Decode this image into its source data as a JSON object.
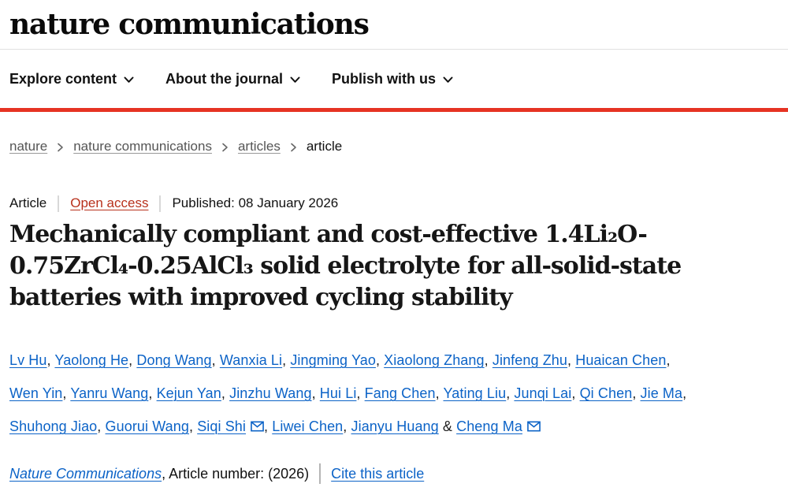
{
  "colors": {
    "brand_red_bar": "#e63323",
    "open_access_red": "#b8311c",
    "link_blue": "#0c63c7",
    "breadcrumb_gray": "#555555",
    "text_dark": "#111111"
  },
  "header": {
    "logo": "nature communications",
    "nav": [
      {
        "label": "Explore content"
      },
      {
        "label": "About the journal"
      },
      {
        "label": "Publish with us"
      }
    ]
  },
  "breadcrumb": {
    "items": [
      {
        "label": "nature"
      },
      {
        "label": "nature communications"
      },
      {
        "label": "articles"
      },
      {
        "label": "article"
      }
    ]
  },
  "article_meta": {
    "type_label": "Article",
    "access_label": "Open access",
    "published_label": "Published: 08 January 2026"
  },
  "title": {
    "lines": [
      "Mechanically compliant and cost-effective 1.4Li₂O-",
      "0.75ZrCl₄-0.25AlCl₃ solid electrolyte for all-solid-state",
      "batteries with improved cycling stability"
    ]
  },
  "authors": {
    "separators": {
      "comma": ", ",
      "amp": " & "
    },
    "lines": [
      [
        {
          "name": "Lv Hu"
        },
        {
          "name": "Yaolong He"
        },
        {
          "name": "Dong Wang"
        },
        {
          "name": "Wanxia Li"
        },
        {
          "name": "Jingming Yao"
        },
        {
          "name": "Xiaolong Zhang"
        },
        {
          "name": "Jinfeng Zhu"
        },
        {
          "name": "Huaican Chen"
        }
      ],
      [
        {
          "name": "Wen Yin"
        },
        {
          "name": "Yanru Wang"
        },
        {
          "name": "Kejun Yan"
        },
        {
          "name": "Jinzhu Wang"
        },
        {
          "name": "Hui Li"
        },
        {
          "name": "Fang Chen"
        },
        {
          "name": "Yating Liu"
        },
        {
          "name": "Junqi Lai"
        },
        {
          "name": "Qi Chen"
        },
        {
          "name": "Jie Ma"
        }
      ],
      [
        {
          "name": "Shuhong Jiao"
        },
        {
          "name": "Guorui Wang"
        },
        {
          "name": "Siqi Shi",
          "email": true
        },
        {
          "name": "Liwei Chen"
        },
        {
          "name": "Jianyu Huang"
        },
        {
          "name": "Cheng Ma",
          "email": true
        }
      ]
    ]
  },
  "citation": {
    "journal": "Nature Communications",
    "text": ", Article number:  (2026)",
    "cite_link": "Cite this article"
  }
}
